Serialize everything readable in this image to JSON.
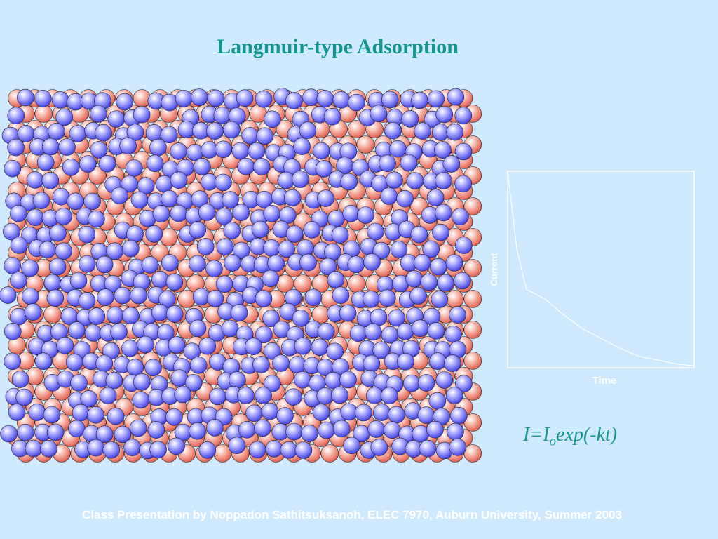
{
  "slide": {
    "title": "Langmuir-type Adsorption",
    "footer": "Class Presentation by Noppadon Sathitsuksanoh, ELEC 7970, Auburn University, Summer 2003"
  },
  "equation": {
    "lhs": "I=I",
    "subscript": "o",
    "rhs": "exp(-kt)"
  },
  "surface": {
    "substrate_color": "#f07a6a",
    "adsorbate_color": "#6c6cf0"
  },
  "chart_data": {
    "type": "line",
    "xlabel": "Time",
    "ylabel": "Current",
    "x": [
      0,
      0.05,
      0.1,
      0.2,
      0.3,
      0.4,
      0.5,
      0.6,
      0.7,
      0.8,
      0.9,
      1.0
    ],
    "series": [
      {
        "values": [
          1.0,
          0.6,
          0.4,
          0.35,
          0.27,
          0.2,
          0.15,
          0.1,
          0.06,
          0.04,
          0.02,
          0.01
        ]
      }
    ],
    "xlim": [
      0,
      1
    ],
    "ylim": [
      0,
      1
    ],
    "grid": false,
    "line_color": "#ffffff"
  }
}
